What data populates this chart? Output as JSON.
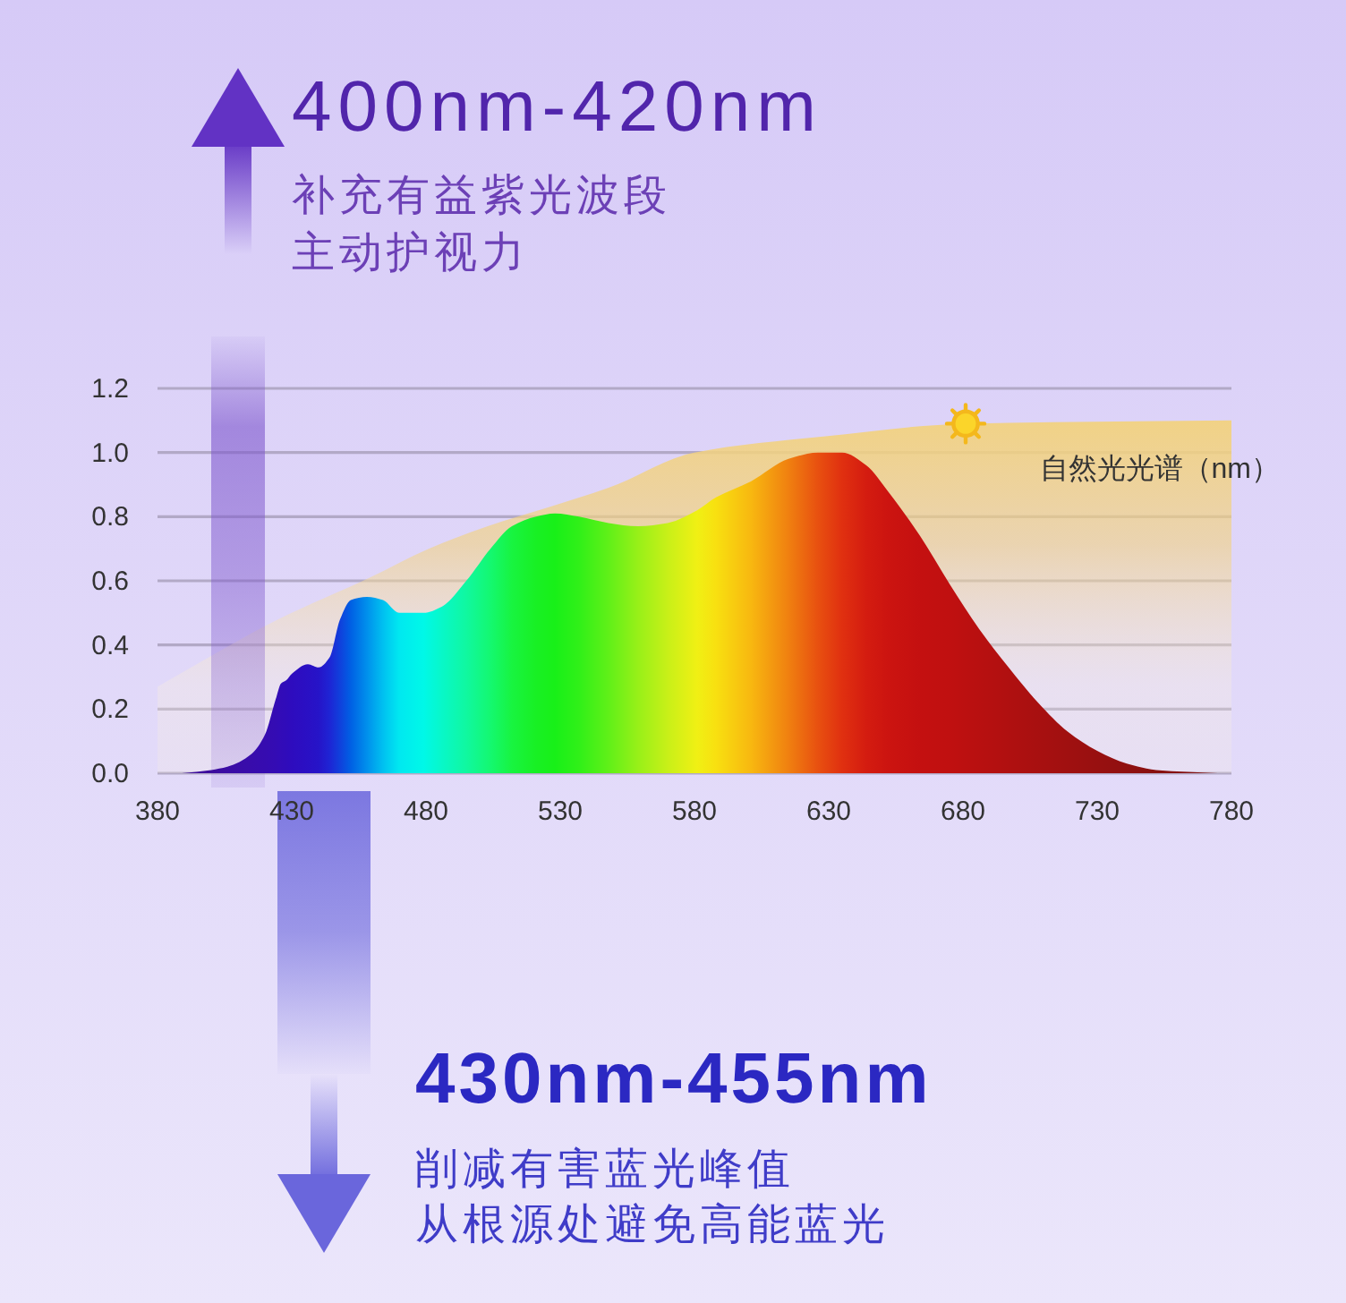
{
  "chart_data": {
    "type": "area",
    "xlim": [
      380,
      780
    ],
    "xticks": [
      380,
      430,
      480,
      530,
      580,
      630,
      680,
      730,
      780
    ],
    "ylim": [
      0,
      1.2
    ],
    "yticks": [
      {
        "value": 0,
        "label": "0.0"
      },
      0.2,
      0.4,
      0.6,
      0.8,
      {
        "value": 1,
        "label": "1.0"
      },
      1.2
    ],
    "grid": "y",
    "series": [
      {
        "name": "自然光光谱（nm）",
        "color": "#f2d280",
        "x": [
          380,
          425,
          459,
          481,
          503,
          526,
          548,
          580,
          628,
          681,
          780
        ],
        "values": [
          0.27,
          0.48,
          0.61,
          0.7,
          0.77,
          0.83,
          0.89,
          1.0,
          1.05,
          1.09,
          1.1
        ]
      },
      {
        "x": [
          389,
          400,
          406,
          415,
          420,
          424,
          426,
          428,
          430,
          436,
          440,
          444,
          448,
          452,
          458,
          464,
          470,
          479,
          486,
          495,
          504,
          512,
          521,
          528,
          537,
          548,
          559,
          570,
          581,
          588,
          601,
          615,
          626,
          635,
          644,
          652,
          664,
          675,
          686,
          697,
          708,
          719,
          730,
          741,
          752,
          775
        ],
        "values": [
          0,
          0.01,
          0.02,
          0.06,
          0.12,
          0.23,
          0.28,
          0.29,
          0.31,
          0.34,
          0.33,
          0.36,
          0.48,
          0.54,
          0.55,
          0.54,
          0.5,
          0.5,
          0.52,
          0.6,
          0.7,
          0.77,
          0.8,
          0.81,
          0.8,
          0.78,
          0.77,
          0.78,
          0.82,
          0.86,
          0.91,
          0.98,
          1.0,
          1.0,
          0.96,
          0.88,
          0.74,
          0.59,
          0.45,
          0.33,
          0.22,
          0.13,
          0.07,
          0.03,
          0.01,
          0
        ],
        "colors": [
          "#3c0c9c",
          "#3c0c9c",
          "#3a0ca4",
          "#380cac",
          "#360cb0",
          "#340cb4",
          "#320cb8",
          "#300cba",
          "#2e0cbe",
          "#2a10c4",
          "#2614c8",
          "#1e24d4",
          "#1040dc",
          "#0060e4",
          "#0090ec",
          "#00c0f0",
          "#00e8f0",
          "#00f8e8",
          "#08f8c8",
          "#10f8a0",
          "#14f870",
          "#18f440",
          "#18f024",
          "#18f018",
          "#30f018",
          "#60f018",
          "#98f018",
          "#c8f018",
          "#f0f014",
          "#f8e010",
          "#f8b810",
          "#f08010",
          "#e85010",
          "#e03010",
          "#d41c10",
          "#cc1410",
          "#c41010",
          "#c01010",
          "#b81010",
          "#b01010",
          "#a81010",
          "#a01010",
          "#981010",
          "#901010",
          "#881010",
          "#801010"
        ]
      }
    ],
    "bands": [
      {
        "axis": "x",
        "from": 400,
        "to": 420,
        "label": "400nm-420nm",
        "color": "#7c55cc"
      }
    ],
    "annotations": [
      "补充有益紫光波段",
      "主动护视力",
      "430nm-455nm",
      "削减有害蓝光峰值",
      "从根源处避免高能蓝光"
    ]
  }
}
